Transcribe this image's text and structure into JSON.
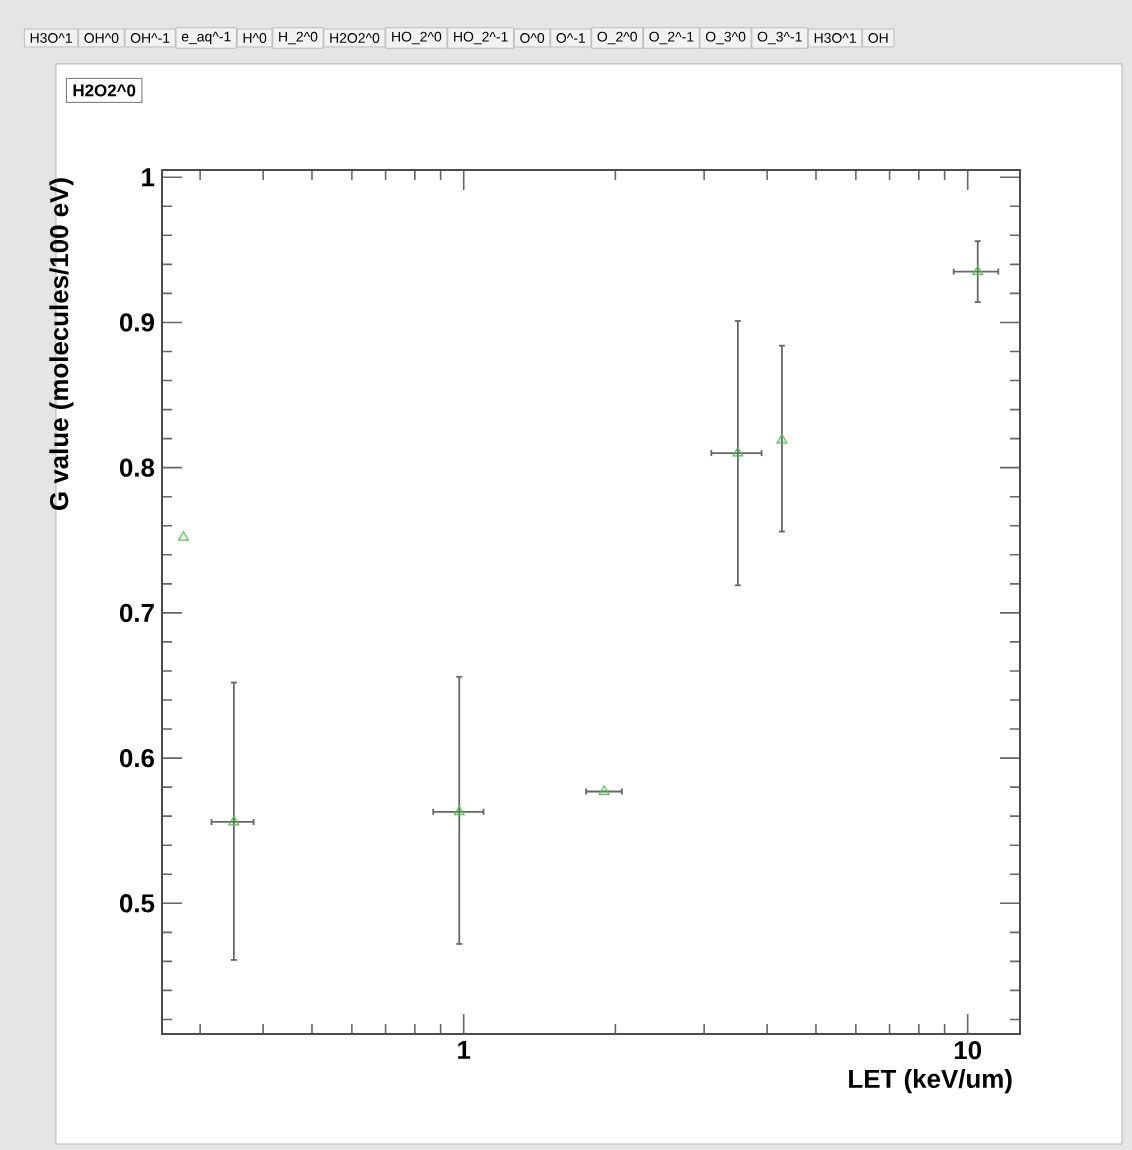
{
  "chart_data": {
    "type": "scatter",
    "title": "H2O2^0",
    "xlabel": "LET (keV/um)",
    "ylabel": "G value (molecules/100 eV)",
    "annotations": [
      "H3O^1",
      "OH^0",
      "OH^-1",
      "e_aq^-1",
      "H^0",
      "H_2^0",
      "H2O2^0",
      "HO_2^0",
      "HO_2^-1",
      "O^0",
      "O^-1",
      "O_2^0",
      "O_2^-1",
      "O_3^0",
      "O_3^-1",
      "H3O^1",
      "OH"
    ],
    "log": "x",
    "marker": "triangle",
    "grid": false,
    "xlim": [
      0.252,
      12.7
    ],
    "ylim": [
      0.41,
      1.005
    ],
    "xticks": [
      {
        "value": 0.3,
        "label": null
      },
      {
        "value": 0.4,
        "label": null
      },
      {
        "value": 0.5,
        "label": null
      },
      {
        "value": 0.6,
        "label": null
      },
      {
        "value": 0.7,
        "label": null
      },
      {
        "value": 0.8,
        "label": null
      },
      {
        "value": 0.9,
        "label": null
      },
      1,
      {
        "value": 2,
        "label": null
      },
      {
        "value": 3,
        "label": null
      },
      {
        "value": 4,
        "label": null
      },
      {
        "value": 5,
        "label": null
      },
      {
        "value": 6,
        "label": null
      },
      {
        "value": 7,
        "label": null
      },
      {
        "value": 8,
        "label": null
      },
      {
        "value": 9,
        "label": null
      },
      10
    ],
    "yticks": [
      {
        "value": 0.42,
        "label": null
      },
      {
        "value": 0.44,
        "label": null
      },
      {
        "value": 0.46,
        "label": null
      },
      {
        "value": 0.48,
        "label": null
      },
      0.5,
      {
        "value": 0.52,
        "label": null
      },
      {
        "value": 0.54,
        "label": null
      },
      {
        "value": 0.56,
        "label": null
      },
      {
        "value": 0.58,
        "label": null
      },
      0.6,
      {
        "value": 0.62,
        "label": null
      },
      {
        "value": 0.64,
        "label": null
      },
      {
        "value": 0.66,
        "label": null
      },
      {
        "value": 0.68,
        "label": null
      },
      0.7,
      {
        "value": 0.72,
        "label": null
      },
      {
        "value": 0.74,
        "label": null
      },
      {
        "value": 0.76,
        "label": null
      },
      {
        "value": 0.78,
        "label": null
      },
      0.8,
      {
        "value": 0.82,
        "label": null
      },
      {
        "value": 0.84,
        "label": null
      },
      {
        "value": 0.86,
        "label": null
      },
      {
        "value": 0.88,
        "label": null
      },
      0.9,
      {
        "value": 0.92,
        "label": null
      },
      {
        "value": 0.94,
        "label": null
      },
      {
        "value": 0.96,
        "label": null
      },
      {
        "value": 0.98,
        "label": null
      },
      1
    ],
    "series": [
      {
        "color": "#44cc44",
        "x": [
          0.278,
          0.35,
          0.98,
          1.9,
          3.5,
          4.28,
          10.47
        ],
        "values": [
          0.752,
          0.556,
          0.563,
          0.577,
          0.81,
          0.819,
          0.935
        ],
        "errors": [
          null,
          [
            0.461,
            0.652
          ],
          [
            0.472,
            0.656
          ],
          null,
          [
            0.719,
            0.901
          ],
          [
            0.756,
            0.884
          ],
          [
            0.914,
            0.956
          ]
        ],
        "xerrors": [
          null,
          [
            0.316,
            0.383
          ],
          [
            0.87,
            1.095
          ],
          [
            1.75,
            2.06
          ],
          [
            3.1,
            3.9
          ],
          null,
          [
            9.38,
            11.5
          ]
        ]
      }
    ]
  }
}
